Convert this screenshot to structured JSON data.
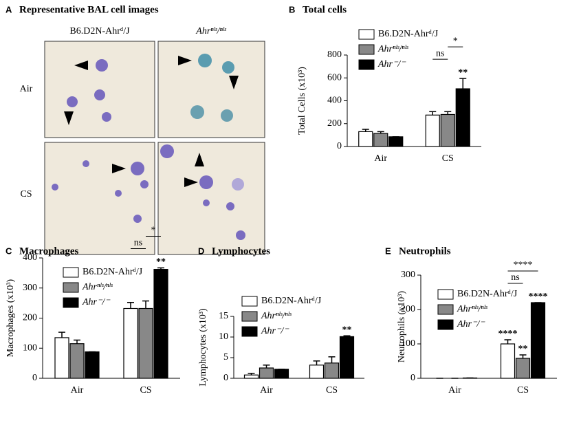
{
  "panel_a": {
    "panel": "A",
    "title": "Representative BAL cell images",
    "columns": [
      "B6.D2N-Ahrᵈ/J",
      "Ahrⁿˡˢ/ⁿˡˢ"
    ],
    "rows": [
      "Air",
      "CS"
    ]
  },
  "chart_data": [
    {
      "type": "bar",
      "panel": "B",
      "title": "Total cells",
      "y_label": "Total Cells (x10³)",
      "categories": [
        "Air",
        "CS"
      ],
      "series": [
        {
          "name": "B6.D2N-Ahrᵈ/J",
          "color": "#ffffff",
          "values": [
            130,
            275
          ],
          "errors": [
            20,
            30
          ]
        },
        {
          "name": "Ahrⁿˡˢ/ⁿˡˢ",
          "color": "#888888",
          "values": [
            115,
            280
          ],
          "errors": [
            15,
            25
          ]
        },
        {
          "name": "Ahr⁻/⁻",
          "color": "#000000",
          "values": [
            85,
            505
          ],
          "errors": [
            0,
            90
          ]
        }
      ],
      "ylim": [
        0,
        800
      ],
      "yticks": [
        0,
        200,
        400,
        600,
        800
      ],
      "annotations": [
        {
          "text": "**",
          "bars": [
            [
              2,
              1
            ]
          ]
        },
        {
          "text": "ns",
          "bars": [
            [
              0,
              1
            ],
            [
              1,
              1
            ]
          ]
        },
        {
          "text": "*",
          "bars": [
            [
              1,
              1
            ],
            [
              2,
              1
            ]
          ]
        }
      ]
    },
    {
      "type": "bar",
      "panel": "C",
      "title": "Macrophages",
      "y_label": "Macrophages (x10³)",
      "categories": [
        "Air",
        "CS"
      ],
      "series": [
        {
          "name": "B6.D2N-Ahrᵈ/J",
          "color": "#ffffff",
          "values": [
            135,
            232
          ],
          "errors": [
            18,
            20
          ]
        },
        {
          "name": "Ahrⁿˡˢ/ⁿˡˢ",
          "color": "#888888",
          "values": [
            115,
            232
          ],
          "errors": [
            12,
            25
          ]
        },
        {
          "name": "Ahr⁻/⁻",
          "color": "#000000",
          "values": [
            88,
            362
          ],
          "errors": [
            0,
            5
          ]
        }
      ],
      "ylim": [
        0,
        400
      ],
      "yticks": [
        0,
        100,
        200,
        300,
        400
      ],
      "annotations": [
        {
          "text": "**",
          "bars": [
            [
              2,
              1
            ]
          ]
        },
        {
          "text": "ns",
          "bars": [
            [
              0,
              1
            ],
            [
              1,
              1
            ]
          ]
        },
        {
          "text": "*",
          "bars": [
            [
              1,
              1
            ],
            [
              2,
              1
            ]
          ]
        }
      ]
    },
    {
      "type": "bar",
      "panel": "D",
      "title": "Lymphocytes",
      "y_label": "Lymphocytes (x10³)",
      "categories": [
        "Air",
        "CS"
      ],
      "series": [
        {
          "name": "B6.D2N-Ahrᵈ/J",
          "color": "#ffffff",
          "values": [
            0.8,
            3.2
          ],
          "errors": [
            0.4,
            1.0
          ]
        },
        {
          "name": "Ahrⁿˡˢ/ⁿˡˢ",
          "color": "#888888",
          "values": [
            2.5,
            3.7
          ],
          "errors": [
            0.7,
            1.5
          ]
        },
        {
          "name": "Ahr⁻/⁻",
          "color": "#000000",
          "values": [
            2.2,
            10.1
          ],
          "errors": [
            0,
            0.2
          ]
        }
      ],
      "ylim": [
        0,
        15
      ],
      "yticks": [
        0,
        5,
        10,
        15
      ],
      "annotations": [
        {
          "text": "**",
          "bars": [
            [
              2,
              1
            ]
          ]
        }
      ]
    },
    {
      "type": "bar",
      "panel": "E",
      "title": "Neutrophils",
      "y_label": "Neutrophils (x10³)",
      "categories": [
        "Air",
        "CS"
      ],
      "series": [
        {
          "name": "B6.D2N-Ahrᵈ/J",
          "color": "#ffffff",
          "values": [
            0,
            100
          ],
          "errors": [
            0,
            12
          ]
        },
        {
          "name": "Ahrⁿˡˢ/ⁿˡˢ",
          "color": "#888888",
          "values": [
            0,
            58
          ],
          "errors": [
            0,
            10
          ]
        },
        {
          "name": "Ahr⁻/⁻",
          "color": "#000000",
          "values": [
            1,
            220
          ],
          "errors": [
            0,
            0
          ]
        }
      ],
      "ylim": [
        0,
        300
      ],
      "yticks": [
        0,
        100,
        200,
        300
      ],
      "annotations": [
        {
          "text": "****",
          "bars": [
            [
              0,
              1
            ]
          ]
        },
        {
          "text": "**",
          "bars": [
            [
              1,
              1
            ]
          ]
        },
        {
          "text": "****",
          "bars": [
            [
              2,
              1
            ]
          ]
        },
        {
          "text": "ns",
          "bars": [
            [
              0,
              1
            ],
            [
              1,
              1
            ]
          ]
        },
        {
          "text": "****",
          "bars": [
            [
              0,
              1
            ],
            [
              2,
              1
            ]
          ]
        }
      ]
    }
  ]
}
